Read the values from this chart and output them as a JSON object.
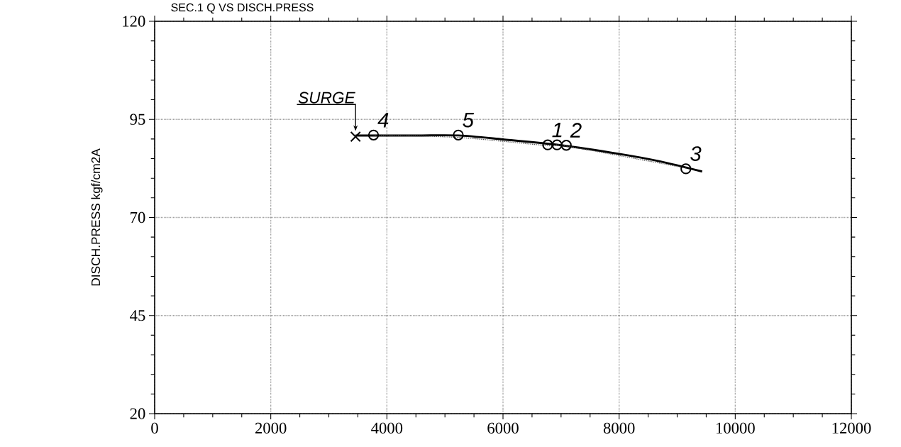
{
  "chart_data": {
    "type": "line",
    "title": "SEC.1 Q VS DISCH.PRESS",
    "ylabel": "DISCH.PRESS kgf/cm2A",
    "xlim": [
      0,
      12000
    ],
    "xticks": [
      0,
      2000,
      4000,
      6000,
      8000,
      10000,
      12000
    ],
    "ylim": [
      20,
      120
    ],
    "yticks": [
      20,
      45,
      70,
      95,
      120
    ],
    "grid": true,
    "series": [
      {
        "color": "#000000",
        "marker": "none",
        "line_style": "solid",
        "x": [
          3460,
          4500,
          5230,
          6000,
          7000,
          8000,
          8700,
          9430
        ],
        "values": [
          90.9,
          90.9,
          90.9,
          89.9,
          88.4,
          86.2,
          84.3,
          81.7
        ]
      },
      {
        "color": "#555555",
        "marker": "none",
        "line_style": "dotted",
        "x": [
          3770,
          5230,
          6770,
          7090,
          9150
        ],
        "values": [
          91.0,
          90.4,
          88.3,
          88.2,
          82.6
        ]
      },
      {
        "type": "scatter",
        "color": "#000000",
        "marker": "circle",
        "x": [
          3770,
          5230,
          6770,
          6930,
          7090,
          9150
        ],
        "values": [
          91.0,
          91.0,
          88.5,
          88.5,
          88.4,
          82.4
        ]
      },
      {
        "type": "scatter",
        "color": "#000000",
        "marker": "cross",
        "x": [
          3460
        ],
        "values": [
          90.6
        ]
      }
    ],
    "annotations": [
      {
        "text": "SURGE",
        "x": 3460,
        "y": 90.6
      },
      {
        "text": "4",
        "x": 3770,
        "y": 91.0
      },
      {
        "text": "5",
        "x": 5230,
        "y": 91.0
      },
      {
        "text": "1",
        "x": 6770,
        "y": 88.5
      },
      {
        "text": "2",
        "x": 7090,
        "y": 88.4
      },
      {
        "text": "3",
        "x": 9150,
        "y": 82.4
      }
    ]
  }
}
